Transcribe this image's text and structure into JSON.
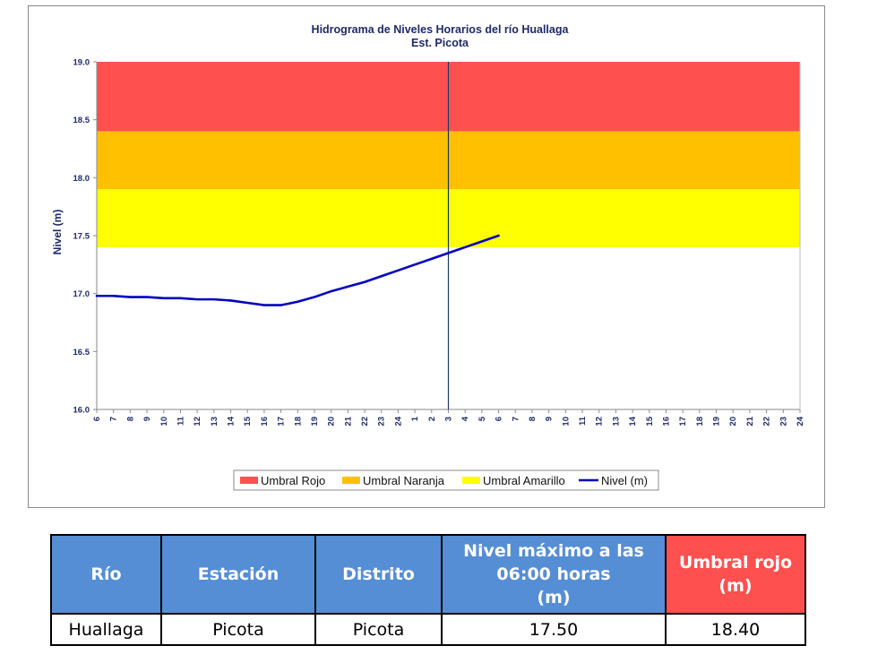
{
  "colors": {
    "umbral_rojo": "#ff5050",
    "umbral_naranja": "#ffc000",
    "umbral_amarillo": "#ffff00",
    "nivel_line": "#0000c0",
    "axis_text": "#1f2a6b",
    "table_header": "#558ed5",
    "table_header_red": "#ff5050"
  },
  "chart_data": {
    "type": "line",
    "title": "Hidrograma de Niveles Horarios del río Huallaga",
    "subtitle": "Est. Picota",
    "ylabel": "Nivel (m)",
    "xlabel": "",
    "ylim": [
      16.0,
      19.0
    ],
    "yticks": [
      "19.0",
      "18.5",
      "18.0",
      "17.5",
      "17.0",
      "16.5",
      "16.0"
    ],
    "x_tick_labels": [
      "6",
      "7",
      "8",
      "9",
      "10",
      "11",
      "12",
      "13",
      "14",
      "15",
      "16",
      "17",
      "18",
      "19",
      "20",
      "21",
      "22",
      "23",
      "24",
      "1",
      "2",
      "3",
      "4",
      "5",
      "6",
      "7",
      "8",
      "9",
      "10",
      "11",
      "12",
      "13",
      "14",
      "15",
      "16",
      "17",
      "18",
      "19",
      "20",
      "21",
      "22",
      "23",
      "24"
    ],
    "current_time_marker": "3",
    "thresholds": [
      {
        "name": "Umbral Rojo",
        "from": 18.4,
        "to": 19.0,
        "color": "#ff5050"
      },
      {
        "name": "Umbral Naranja",
        "from": 17.9,
        "to": 18.4,
        "color": "#ffc000"
      },
      {
        "name": "Umbral Amarillo",
        "from": 17.4,
        "to": 17.9,
        "color": "#ffff00"
      }
    ],
    "series": [
      {
        "name": "Nivel (m)",
        "color": "#0000c0",
        "x": [
          "6",
          "7",
          "8",
          "9",
          "10",
          "11",
          "12",
          "13",
          "14",
          "15",
          "16",
          "17",
          "18",
          "19",
          "20",
          "21",
          "22",
          "23",
          "24",
          "1",
          "2",
          "3",
          "4",
          "5",
          "6"
        ],
        "values": [
          16.98,
          16.98,
          16.97,
          16.97,
          16.96,
          16.96,
          16.95,
          16.95,
          16.94,
          16.92,
          16.9,
          16.9,
          16.93,
          16.97,
          17.02,
          17.06,
          17.1,
          17.15,
          17.2,
          17.25,
          17.3,
          17.35,
          17.4,
          17.45,
          17.5
        ]
      }
    ],
    "legend": [
      "Umbral Rojo",
      "Umbral Naranja",
      "Umbral Amarillo",
      "Nivel (m)"
    ],
    "legend_position": "bottom"
  },
  "table": {
    "headers": [
      "Río",
      "Estación",
      "Distrito",
      "Nivel máximo a las 06:00 horas (m)",
      "Umbral rojo (m)"
    ],
    "header_lines": [
      [
        "Río"
      ],
      [
        "Estación"
      ],
      [
        "Distrito"
      ],
      [
        "Nivel máximo a las",
        "06:00 horas",
        "(m)"
      ],
      [
        "Umbral rojo",
        "(m)"
      ]
    ],
    "rows": [
      [
        "Huallaga",
        "Picota",
        "Picota",
        "17.50",
        "18.40"
      ]
    ]
  }
}
